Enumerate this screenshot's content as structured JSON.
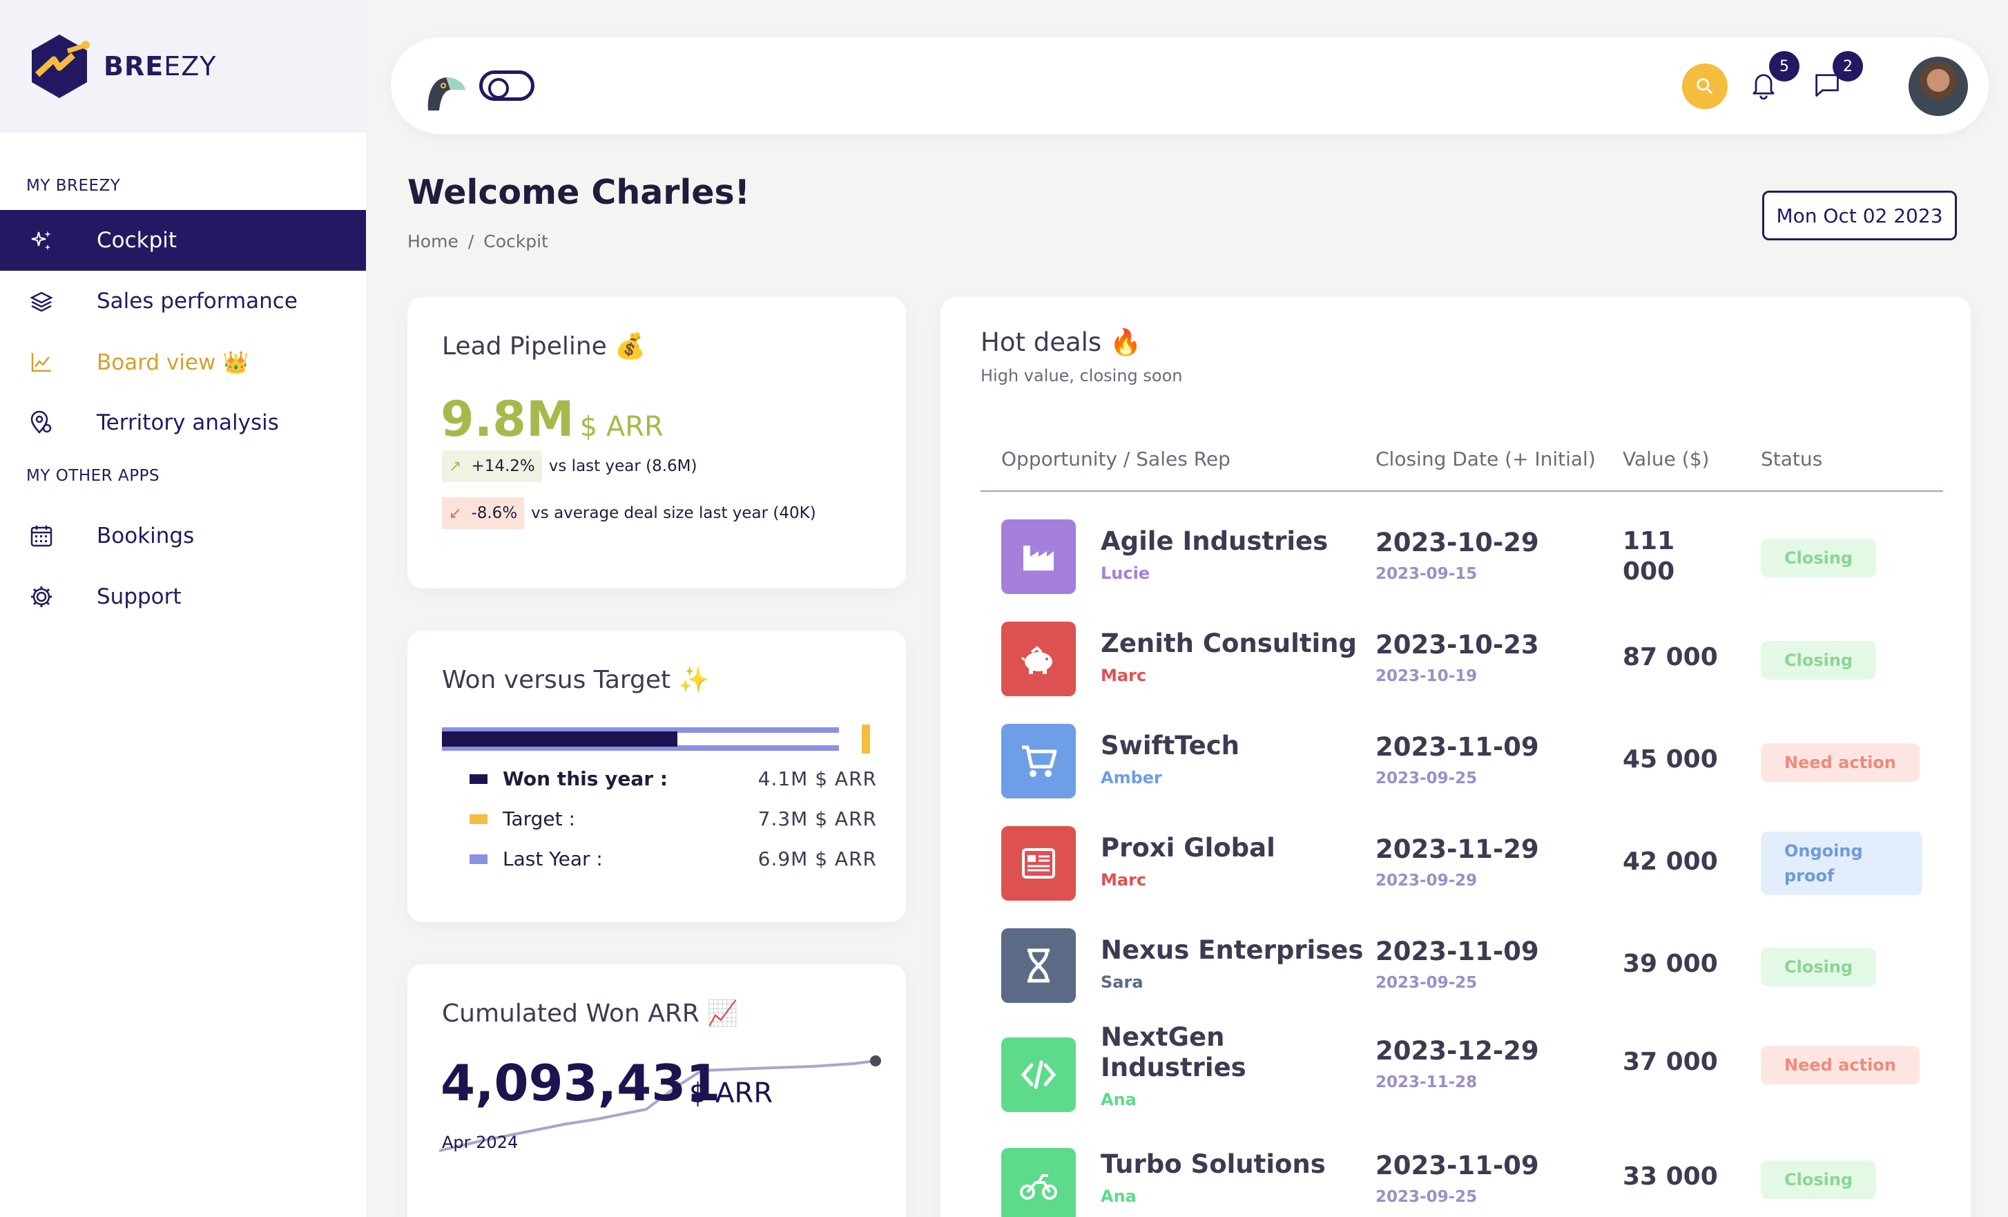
{
  "brand": {
    "name_bold": "BRE",
    "name_light": "EZY"
  },
  "sidebar": {
    "section1": "MY BREEZY",
    "section2": "MY OTHER APPS",
    "items": [
      {
        "label": "Cockpit",
        "icon": "sparkles-icon",
        "active": true
      },
      {
        "label": "Sales performance",
        "icon": "layers-icon"
      },
      {
        "label": "Board view 👑",
        "icon": "chart-line-icon",
        "gold": true
      },
      {
        "label": "Territory analysis",
        "icon": "map-pin-icon"
      }
    ],
    "other_items": [
      {
        "label": "Bookings",
        "icon": "calendar-icon"
      },
      {
        "label": "Support",
        "icon": "gear-icon"
      }
    ]
  },
  "topbar": {
    "notifications_count": "5",
    "messages_count": "2"
  },
  "header": {
    "welcome": "Welcome Charles!",
    "breadcrumb_home": "Home",
    "breadcrumb_sep": "/",
    "breadcrumb_current": "Cockpit",
    "date": "Mon Oct 02 2023"
  },
  "lead_pipeline": {
    "title": "Lead Pipeline 💰",
    "value": "9.8M",
    "unit": "$ ARR",
    "up_pct": "+14.2%",
    "up_text": "vs last year (8.6M)",
    "down_pct": "-8.6%",
    "down_text": "vs average deal size last year (40K)"
  },
  "won_target": {
    "title": "Won versus Target ✨",
    "won_label": "Won this year :",
    "won_value": "4.1M $ ARR",
    "target_label": "Target :",
    "target_value": "7.3M $ ARR",
    "last_label": "Last Year :",
    "last_value": "6.9M $ ARR",
    "won_num": 4.1,
    "target_num": 7.3,
    "last_num": 6.9
  },
  "cumulated": {
    "title": "Cumulated Won ARR 📈",
    "value": "4,093,431",
    "unit": "$ ARR",
    "month": "Apr 2024"
  },
  "hot_deals": {
    "title": "Hot deals 🔥",
    "subtitle": "High value, closing soon",
    "columns": [
      "Opportunity / Sales Rep",
      "Closing Date (+ Initial)",
      "Value ($)",
      "Status"
    ],
    "rows": [
      {
        "name": "Agile Industries",
        "rep": "Lucie",
        "close": "2023-10-29",
        "initial": "2023-09-15",
        "value": "111 000",
        "status": "Closing"
      },
      {
        "name": "Zenith Consulting",
        "rep": "Marc",
        "close": "2023-10-23",
        "initial": "2023-10-19",
        "value": "87 000",
        "status": "Closing"
      },
      {
        "name": "SwiftTech",
        "rep": "Amber",
        "close": "2023-11-09",
        "initial": "2023-09-25",
        "value": "45 000",
        "status": "Need action"
      },
      {
        "name": "Proxi Global",
        "rep": "Marc",
        "close": "2023-11-29",
        "initial": "2023-09-29",
        "value": "42 000",
        "status": "Ongoing proof"
      },
      {
        "name": "Nexus Enterprises",
        "rep": "Sara",
        "close": "2023-11-09",
        "initial": "2023-09-25",
        "value": "39 000",
        "status": "Closing"
      },
      {
        "name": "NextGen Industries",
        "rep": "Ana",
        "close": "2023-12-29",
        "initial": "2023-11-28",
        "value": "37 000",
        "status": "Need action"
      },
      {
        "name": "Turbo Solutions",
        "rep": "Ana",
        "close": "2023-11-09",
        "initial": "2023-09-25",
        "value": "33 000",
        "status": "Closing"
      }
    ]
  }
}
